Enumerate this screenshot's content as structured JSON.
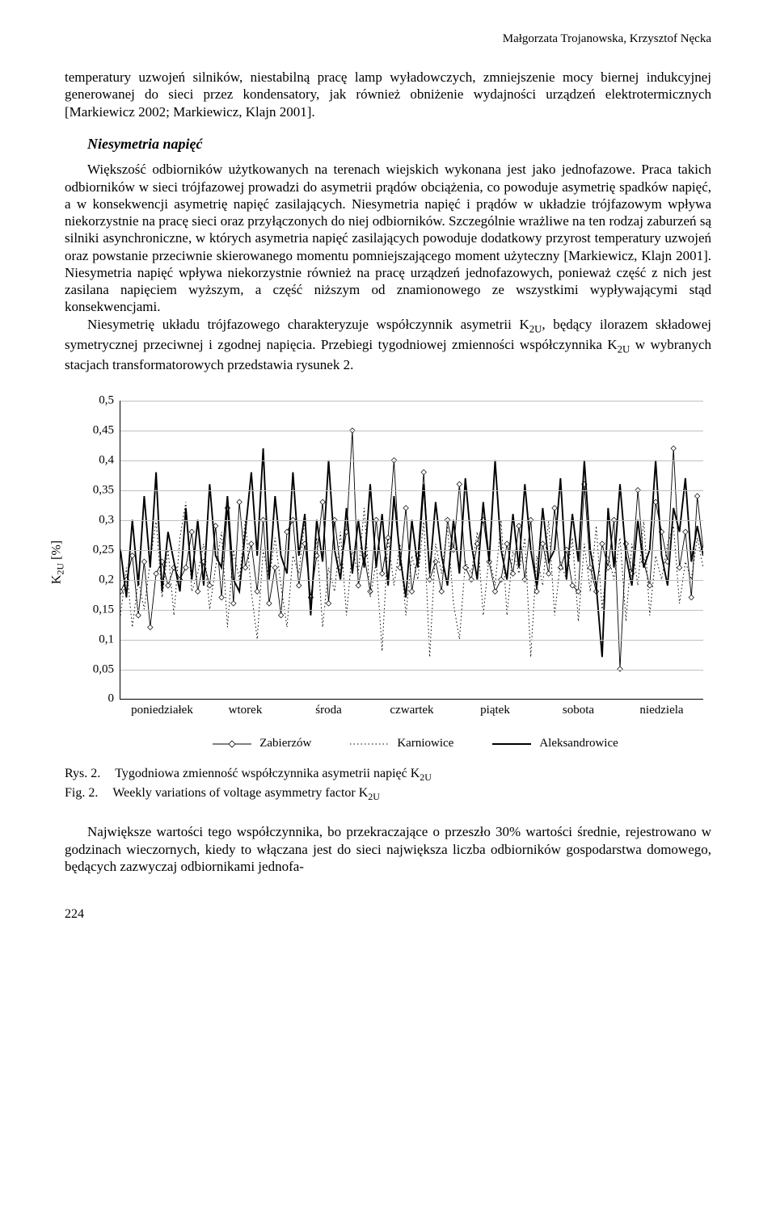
{
  "header": {
    "authors": "Małgorzata Trojanowska, Krzysztof Nęcka"
  },
  "para1": "temperatury uzwojeń silników, niestabilną pracę lamp wyładowczych, zmniejszenie mocy biernej indukcyjnej generowanej do sieci przez kondensatory, jak również obniżenie wydajności urządzeń elektrotermicznych [Markiewicz 2002; Markiewicz, Klajn 2001].",
  "heading": "Niesymetria napięć",
  "para2a": "Większość odbiorników użytkowanych na terenach wiejskich wykonana jest jako jednofazowe. Praca takich odbiorników w sieci trójfazowej prowadzi do asymetrii prądów obciążenia, co powoduje asymetrię spadków napięć, a w konsekwencji asymetrię napięć zasilających. Niesymetria napięć i prądów w układzie trójfazowym wpływa niekorzystnie na pracę sieci oraz przyłączonych do niej odbiorników. Szczególnie wrażliwe na ten rodzaj zaburzeń są silniki asynchroniczne, w których asymetria napięć zasilających powoduje dodatkowy przyrost temperatury uzwojeń oraz powstanie przeciwnie skierowanego momentu pomniejszającego moment użyteczny [Markiewicz, Klajn 2001]. Niesymetria napięć wpływa niekorzystnie również na pracę urządzeń jednofazowych, ponieważ część z nich jest zasilana napięciem wyższym, a część niższym od znamionowego ze wszystkimi wypływającymi stąd konsekwencjami.",
  "para2b_pre": "Niesymetrię układu trójfazowego charakteryzuje współczynnik asymetrii K",
  "para2b_post": ", będący ilorazem składowej symetrycznej przeciwnej i zgodnej napięcia. Przebiegi tygodniowej zmienności współczynnika K",
  "para2b_tail": " w wybranych stacjach transformatorowych przedstawia rysunek 2.",
  "chart": {
    "type": "line",
    "ylabel": "K₂U [%]",
    "ylim": [
      0,
      0.5
    ],
    "ytick_step": 0.05,
    "yticks": [
      "0",
      "0,05",
      "0,1",
      "0,15",
      "0,2",
      "0,25",
      "0,3",
      "0,35",
      "0,4",
      "0,45",
      "0,5"
    ],
    "x_categories": [
      "poniedziałek",
      "wtorek",
      "środa",
      "czwartek",
      "piątek",
      "sobota",
      "niedziela"
    ],
    "background_color": "#ffffff",
    "grid_color": "#bfbfbf",
    "line_color": "#000000",
    "marker": "diamond",
    "marker_size": 3.2,
    "line_width_thin": 0.9,
    "line_width_thick": 1.9,
    "series": [
      {
        "name": "Zabierzów",
        "style": "solid-thin-markers",
        "values": [
          0.18,
          0.2,
          0.24,
          0.14,
          0.23,
          0.12,
          0.21,
          0.23,
          0.19,
          0.22,
          0.2,
          0.22,
          0.28,
          0.18,
          0.23,
          0.19,
          0.29,
          0.17,
          0.32,
          0.16,
          0.33,
          0.22,
          0.26,
          0.18,
          0.3,
          0.16,
          0.22,
          0.14,
          0.28,
          0.3,
          0.19,
          0.26,
          0.17,
          0.24,
          0.33,
          0.16,
          0.3,
          0.22,
          0.28,
          0.45,
          0.19,
          0.24,
          0.18,
          0.3,
          0.21,
          0.27,
          0.4,
          0.22,
          0.32,
          0.18,
          0.24,
          0.38,
          0.2,
          0.23,
          0.18,
          0.3,
          0.25,
          0.36,
          0.22,
          0.2,
          0.26,
          0.3,
          0.23,
          0.18,
          0.2,
          0.26,
          0.21,
          0.29,
          0.2,
          0.3,
          0.18,
          0.26,
          0.21,
          0.32,
          0.22,
          0.25,
          0.19,
          0.18,
          0.36,
          0.22,
          0.18,
          0.26,
          0.22,
          0.3,
          0.05,
          0.26,
          0.21,
          0.35,
          0.23,
          0.19,
          0.33,
          0.28,
          0.23,
          0.42,
          0.22,
          0.28,
          0.17,
          0.34,
          0.25
        ]
      },
      {
        "name": "Karniowice",
        "style": "dotted",
        "values": [
          0.14,
          0.22,
          0.12,
          0.2,
          0.15,
          0.23,
          0.3,
          0.17,
          0.25,
          0.14,
          0.27,
          0.33,
          0.18,
          0.21,
          0.26,
          0.15,
          0.22,
          0.28,
          0.12,
          0.25,
          0.2,
          0.3,
          0.18,
          0.1,
          0.25,
          0.2,
          0.27,
          0.19,
          0.12,
          0.24,
          0.21,
          0.3,
          0.16,
          0.27,
          0.12,
          0.22,
          0.18,
          0.28,
          0.14,
          0.25,
          0.21,
          0.32,
          0.17,
          0.23,
          0.08,
          0.27,
          0.19,
          0.26,
          0.14,
          0.24,
          0.2,
          0.3,
          0.07,
          0.26,
          0.21,
          0.29,
          0.16,
          0.1,
          0.23,
          0.21,
          0.28,
          0.14,
          0.24,
          0.19,
          0.3,
          0.14,
          0.25,
          0.21,
          0.27,
          0.07,
          0.24,
          0.19,
          0.3,
          0.14,
          0.23,
          0.2,
          0.27,
          0.13,
          0.26,
          0.18,
          0.29,
          0.15,
          0.24,
          0.2,
          0.27,
          0.13,
          0.26,
          0.19,
          0.3,
          0.14,
          0.24,
          0.2,
          0.26,
          0.29,
          0.16,
          0.23,
          0.2,
          0.27,
          0.22
        ]
      },
      {
        "name": "Aleksandrowice",
        "style": "solid-thick",
        "values": [
          0.25,
          0.17,
          0.3,
          0.19,
          0.34,
          0.22,
          0.38,
          0.18,
          0.28,
          0.23,
          0.18,
          0.32,
          0.2,
          0.3,
          0.19,
          0.36,
          0.24,
          0.22,
          0.34,
          0.2,
          0.18,
          0.28,
          0.38,
          0.24,
          0.42,
          0.2,
          0.34,
          0.24,
          0.21,
          0.38,
          0.24,
          0.31,
          0.14,
          0.3,
          0.23,
          0.4,
          0.25,
          0.2,
          0.32,
          0.21,
          0.3,
          0.22,
          0.36,
          0.22,
          0.31,
          0.19,
          0.34,
          0.24,
          0.17,
          0.3,
          0.22,
          0.36,
          0.21,
          0.33,
          0.24,
          0.19,
          0.3,
          0.21,
          0.37,
          0.26,
          0.2,
          0.33,
          0.23,
          0.4,
          0.25,
          0.2,
          0.31,
          0.22,
          0.36,
          0.25,
          0.19,
          0.32,
          0.23,
          0.25,
          0.37,
          0.2,
          0.31,
          0.23,
          0.4,
          0.25,
          0.19,
          0.07,
          0.32,
          0.22,
          0.36,
          0.24,
          0.19,
          0.3,
          0.22,
          0.25,
          0.4,
          0.24,
          0.19,
          0.32,
          0.28,
          0.37,
          0.23,
          0.29,
          0.24
        ]
      }
    ]
  },
  "caption": {
    "rys_lbl": "Rys. 2.",
    "rys_txt_pre": "Tygodniowa zmienność współczynnika asymetrii napięć K",
    "fig_lbl": "Fig. 2.",
    "fig_txt_pre": "Weekly variations of voltage asymmetry factor K"
  },
  "para3": "Największe wartości tego współczynnika, bo przekraczające o przeszło 30% wartości średnie, rejestrowano w godzinach wieczornych, kiedy to włączana jest do sieci największa liczba odbiorników gospodarstwa domowego, będących zazwyczaj odbiornikami jednofa-",
  "page_number": "224"
}
